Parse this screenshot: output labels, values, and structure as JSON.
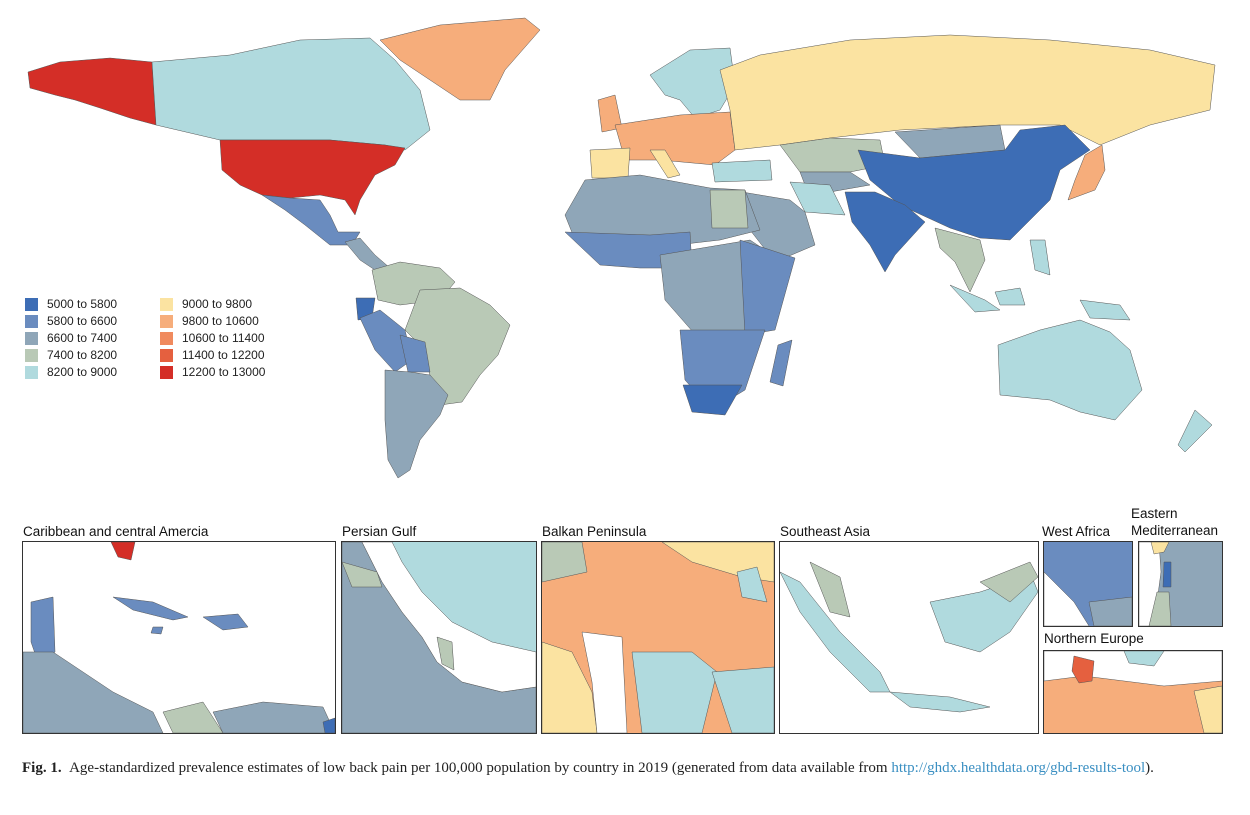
{
  "legend": {
    "items": [
      {
        "label": "5000 to 5800",
        "color": "#3d6db5"
      },
      {
        "label": "5800 to 6600",
        "color": "#6a8cbf"
      },
      {
        "label": "6600 to 7400",
        "color": "#8fa6b8"
      },
      {
        "label": "7400 to 8200",
        "color": "#b9c9b6"
      },
      {
        "label": "8200 to 9000",
        "color": "#b0dade"
      },
      {
        "label": "9000 to 9800",
        "color": "#fbe3a1"
      },
      {
        "label": "9800 to 10600",
        "color": "#f6ad7b"
      },
      {
        "label": "10600 to 11400",
        "color": "#f08a5e"
      },
      {
        "label": "11400 to 12200",
        "color": "#e5603f"
      },
      {
        "label": "12200 to 13000",
        "color": "#d42e27"
      }
    ]
  },
  "insets": {
    "caribbean": "Caribbean and central Amercia",
    "persian_gulf": "Persian Gulf",
    "balkan": "Balkan Peninsula",
    "southeast_asia": "Southeast Asia",
    "west_africa": "West Africa",
    "eastern_med": "Eastern Mediterranean",
    "northern_europe": "Northern Europe"
  },
  "caption": {
    "label": "Fig. 1.",
    "text": "Age-standardized prevalence estimates of low back pain per 100,000 population by country in 2019 (generated from data available from ",
    "link": "http://ghdx.healthdata.org/gbd-results-tool",
    "end": ")."
  }
}
